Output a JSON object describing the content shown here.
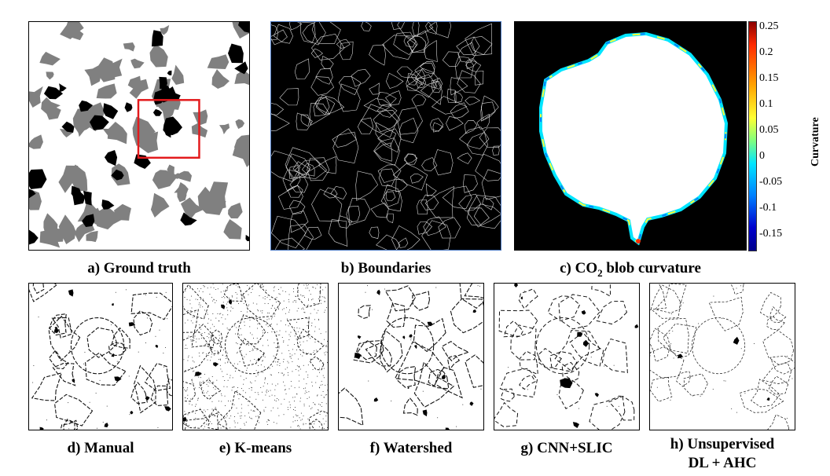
{
  "figure": {
    "panels": [
      {
        "id": "a",
        "caption": "a) Ground truth"
      },
      {
        "id": "b",
        "caption": "b) Boundaries"
      },
      {
        "id": "c",
        "caption_prefix": "c) CO",
        "caption_sub": "2",
        "caption_suffix": " blob curvature"
      },
      {
        "id": "d",
        "caption": "d) Manual"
      },
      {
        "id": "e",
        "caption": "e) K-means"
      },
      {
        "id": "f",
        "caption": "f) Watershed"
      },
      {
        "id": "g",
        "caption": "g) CNN+SLIC"
      },
      {
        "id": "h",
        "caption_line1": "h) Unsupervised",
        "caption_line2": "DL + AHC"
      }
    ],
    "colorbar": {
      "label": "Curvature",
      "ticks": [
        "0.25",
        "0.2",
        "0.15",
        "0.1",
        "0.05",
        "0",
        "-0.05",
        "-0.1",
        "-0.15"
      ],
      "colors": [
        "#8b0000",
        "#ff2a00",
        "#ffa500",
        "#ffff33",
        "#7fff7f",
        "#00e5ff",
        "#0080ff",
        "#0000cd",
        "#00008b"
      ]
    },
    "highlight_color": "#e31a1c"
  }
}
